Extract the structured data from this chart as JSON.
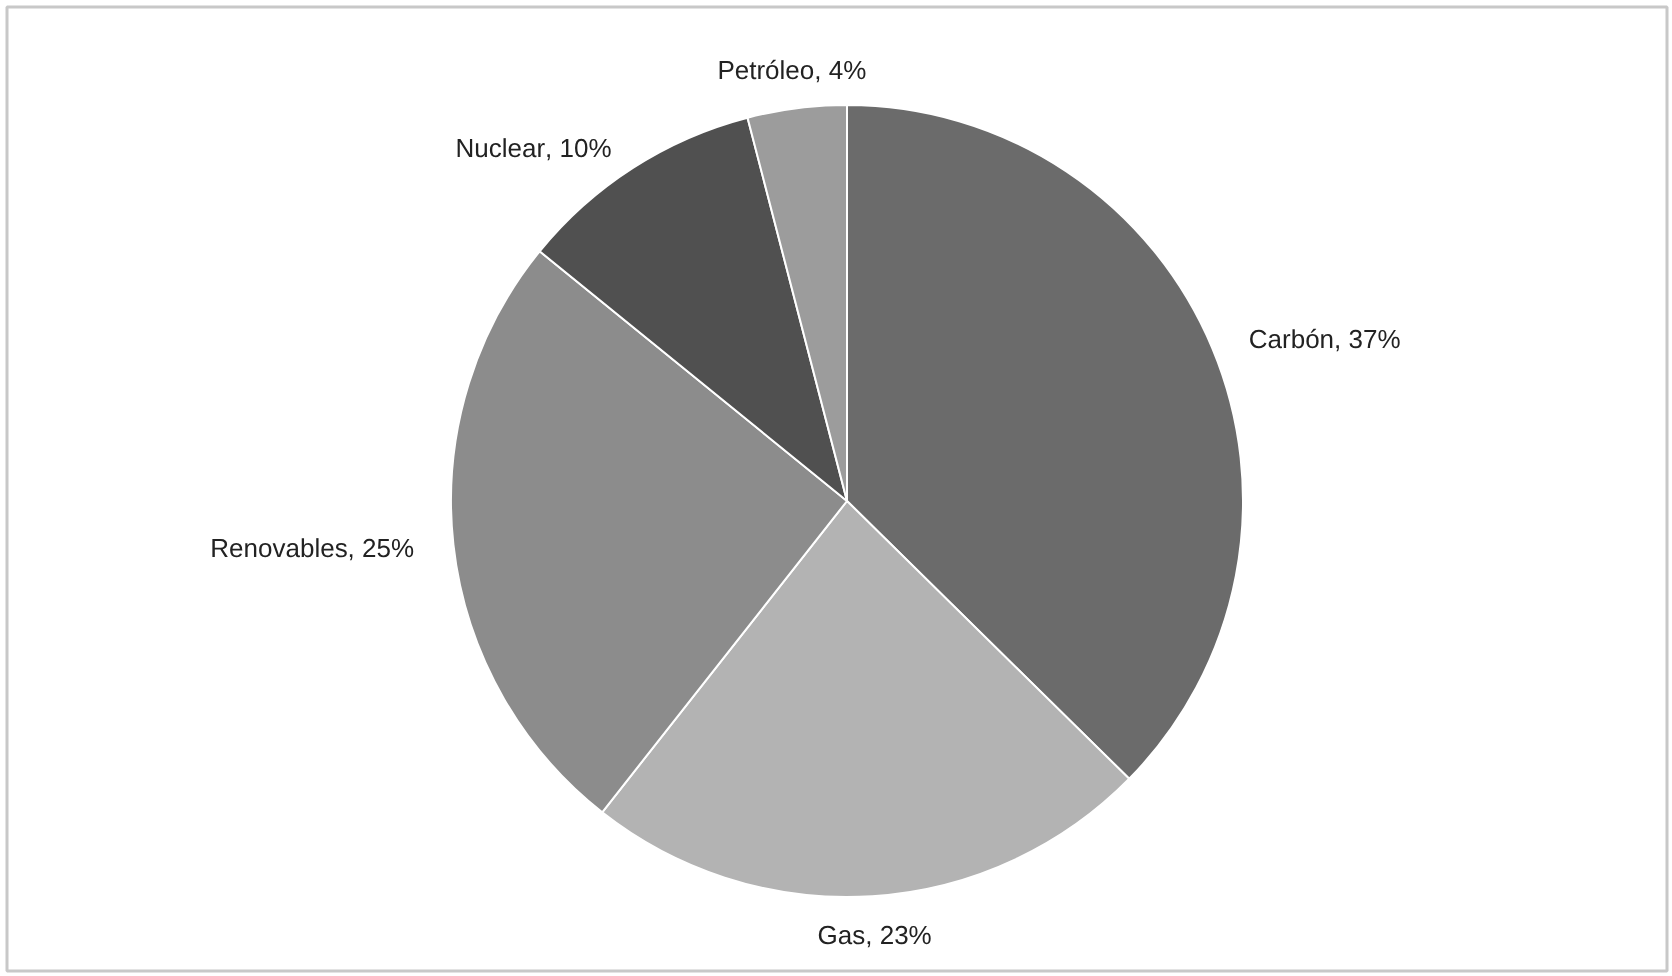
{
  "chart_data": {
    "type": "pie",
    "categories": [
      "Carbón",
      "Gas",
      "Renovables",
      "Nuclear",
      "Petróleo"
    ],
    "values": [
      37,
      23,
      25,
      10,
      4
    ],
    "value_labels": [
      ", 37%",
      ", 23%",
      ", 25%",
      ", 10%",
      ", 4%"
    ],
    "colors": [
      "#6b6b6b",
      "#b3b3b3",
      "#8c8c8c",
      "#505050",
      "#9c9c9c"
    ],
    "legend": false
  }
}
